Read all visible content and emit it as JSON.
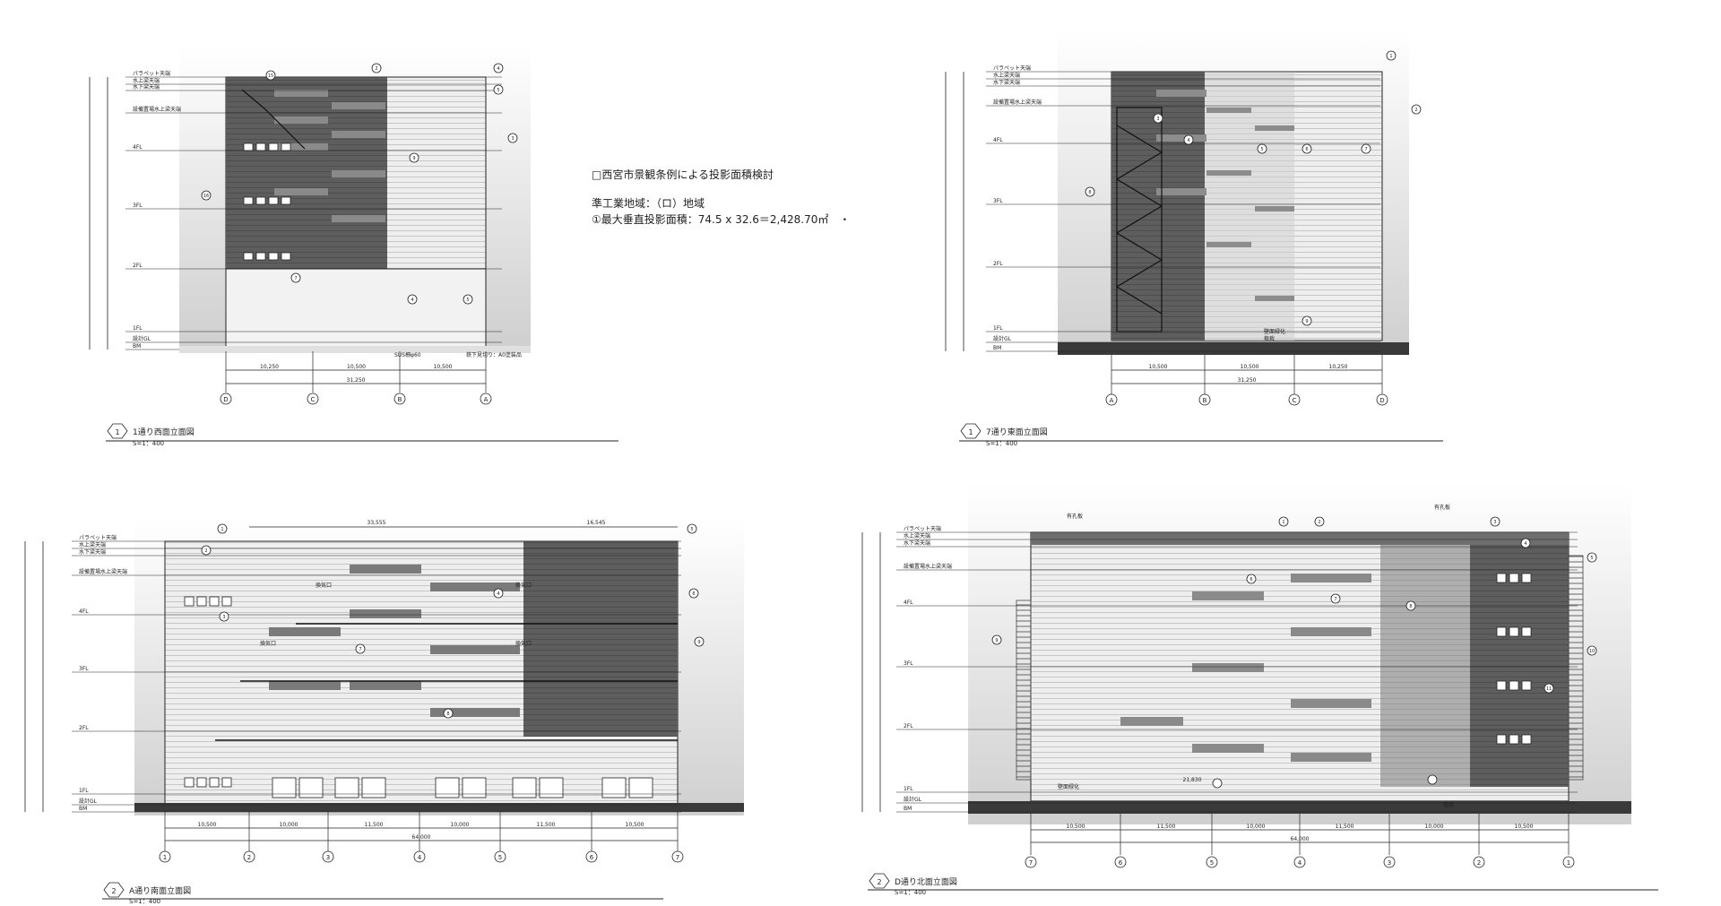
{
  "note": {
    "title": "□西宮市景観条例による投影面積検討",
    "zone": "準工業地域：（ロ）地域",
    "area": "①最大垂直投影面積：74.5 x 32.6＝2,428.70㎡　・"
  },
  "level_labels": [
    "パラペット天端",
    "水上梁天端",
    "水下梁天端",
    "設備置場水上梁天端",
    "4FL",
    "3FL",
    "2FL",
    "1FL",
    "設計GL",
    "BM"
  ],
  "drawings": [
    {
      "id": "west",
      "number": "1",
      "title": "1通り西面立面図",
      "scale": "S=1：400",
      "grid": [
        "D",
        "C",
        "B",
        "A"
      ],
      "spans": [
        "10,250",
        "10,500",
        "10,500"
      ],
      "total": "31,250",
      "annotations": [
        "SUS柵φ60",
        "鉄下見切り：A0塗装品"
      ],
      "callouts": [
        "15",
        "2",
        "4",
        "5",
        "3",
        "16",
        "7",
        "9",
        "5",
        "4",
        "1",
        "6",
        "8",
        "A-10"
      ]
    },
    {
      "id": "east",
      "number": "1",
      "title": "7通り東面立面図",
      "scale": "S=1：400",
      "grid": [
        "A",
        "B",
        "C",
        "D"
      ],
      "spans": [
        "10,500",
        "10,500",
        "10,250"
      ],
      "total": "31,250",
      "annotations": [
        "壁面緑化",
        "植栽"
      ],
      "callouts": [
        "1",
        "2",
        "3",
        "4",
        "5",
        "6",
        "7",
        "8",
        "9"
      ]
    },
    {
      "id": "south",
      "number": "2",
      "title": "A通り南面立面図",
      "scale": "S=1：400",
      "grid": [
        "1",
        "2",
        "3",
        "4",
        "5",
        "6",
        "7"
      ],
      "spans": [
        "10,500",
        "10,000",
        "11,500",
        "10,000",
        "11,500",
        "10,500"
      ],
      "total": "64,000",
      "top_dims": [
        "33,555",
        "16,545"
      ],
      "annotations": [
        "換気口",
        "換気口",
        "換気口",
        "換気口"
      ],
      "callouts": [
        "1",
        "2",
        "3",
        "4",
        "5",
        "6",
        "7",
        "8",
        "9",
        "15"
      ]
    },
    {
      "id": "north",
      "number": "2",
      "title": "D通り北面立面図",
      "scale": "S=1：400",
      "grid": [
        "7",
        "6",
        "5",
        "4",
        "3",
        "2",
        "1"
      ],
      "spans": [
        "10,500",
        "11,500",
        "10,000",
        "11,500",
        "10,000",
        "10,500"
      ],
      "total": "64,000",
      "top_dims": [
        "21,830"
      ],
      "annotations": [
        "有孔板",
        "有孔板",
        "壁面緑化",
        "植栽"
      ],
      "callouts": [
        "1",
        "2",
        "3",
        "4",
        "5",
        "6",
        "7",
        "8",
        "9",
        "10",
        "11"
      ]
    }
  ],
  "colors": {
    "dark_panel": "#5a5a5a",
    "light_panel": "#e6e6e6",
    "line": "#1a1a1a",
    "ground": "#3a3a3a"
  }
}
